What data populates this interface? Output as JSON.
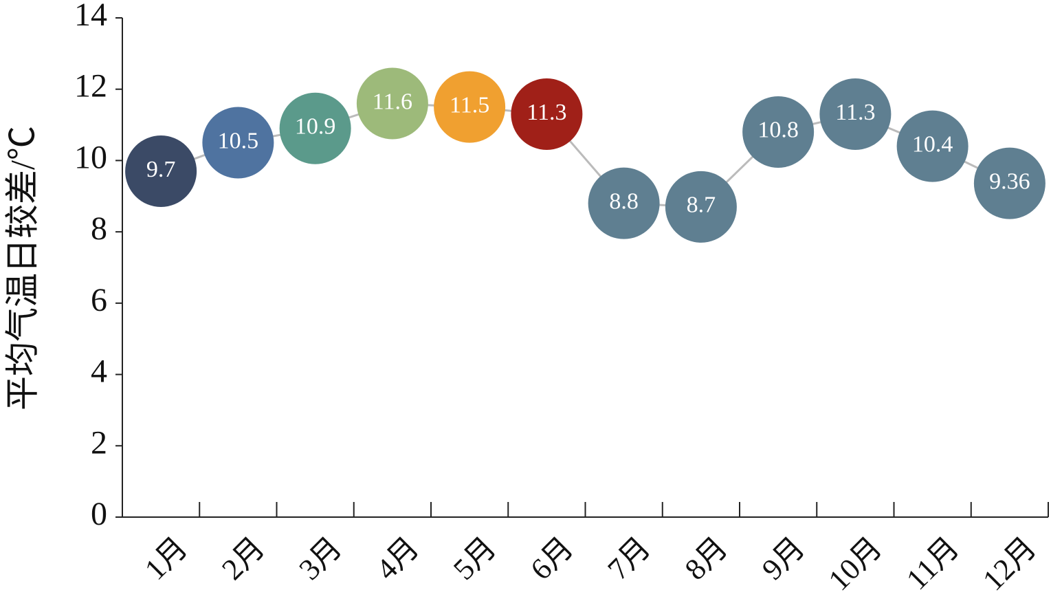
{
  "chart_data": {
    "type": "line",
    "y_label": "平均气温日较差/℃",
    "categories": [
      "1月",
      "2月",
      "3月",
      "4月",
      "5月",
      "6月",
      "7月",
      "8月",
      "9月",
      "10月",
      "11月",
      "12月"
    ],
    "series": [
      {
        "values": [
          9.7,
          10.5,
          10.9,
          11.6,
          11.5,
          11.3,
          8.8,
          8.7,
          10.8,
          11.3,
          10.4,
          9.36
        ],
        "color": "#bbbbbb",
        "point_colors": [
          "#3b4a66",
          "#4f73a0",
          "#5b9a8b",
          "#9dba7a",
          "#f0a030",
          "#a02018",
          "#5f7f91",
          "#5f7f91",
          "#5f7f91",
          "#5f7f91",
          "#5f7f91",
          "#5f7f91"
        ]
      }
    ],
    "ylim": [
      0,
      14
    ],
    "yticks": [
      0,
      2,
      4,
      6,
      8,
      10,
      12,
      14
    ],
    "grid": false
  }
}
